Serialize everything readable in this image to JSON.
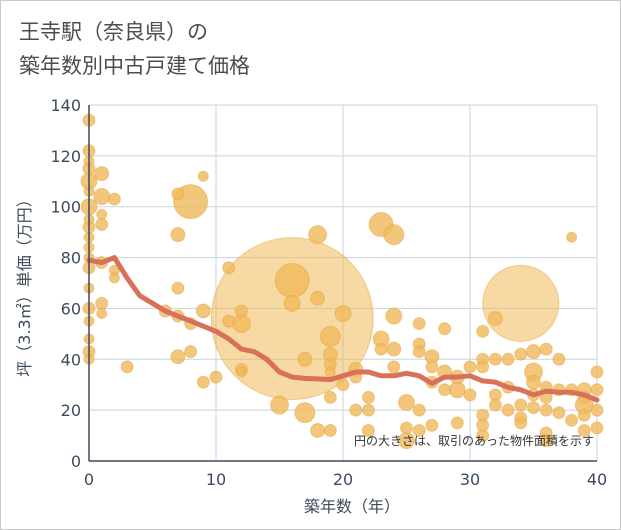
{
  "chart_data": {
    "type": "scatter",
    "title_line1": "王寺駅（奈良県）の",
    "title_line2": "築年数別中古戸建て価格",
    "xlabel": "築年数（年）",
    "ylabel": "坪（3.3㎡）単価（万円）",
    "xlim": [
      0,
      40
    ],
    "ylim": [
      0,
      140
    ],
    "x_ticks": [
      0,
      10,
      20,
      30,
      40
    ],
    "y_ticks": [
      0,
      20,
      40,
      60,
      80,
      100,
      120,
      140
    ],
    "grid": true,
    "note": "円の大きさは、取引のあった物件面積を示す",
    "colors": {
      "bubble_fill": "#f0b95a",
      "bubble_stroke": "#e8a440",
      "trend_line": "#d9705a",
      "grid": "#c8d3de",
      "axis": "#3d4b5c"
    },
    "trend_line": [
      [
        0,
        79
      ],
      [
        1,
        78
      ],
      [
        2,
        80
      ],
      [
        3,
        72
      ],
      [
        4,
        65
      ],
      [
        5,
        62
      ],
      [
        6,
        59
      ],
      [
        7,
        57
      ],
      [
        8,
        55
      ],
      [
        9,
        53
      ],
      [
        10,
        51
      ],
      [
        11,
        48
      ],
      [
        12,
        44
      ],
      [
        13,
        43
      ],
      [
        14,
        40
      ],
      [
        15,
        35
      ],
      [
        16,
        33
      ],
      [
        17,
        32.5
      ],
      [
        18,
        32.3
      ],
      [
        19,
        32
      ],
      [
        20,
        33.5
      ],
      [
        21,
        35
      ],
      [
        22,
        35
      ],
      [
        23,
        33.5
      ],
      [
        24,
        33.5
      ],
      [
        25,
        34.5
      ],
      [
        26,
        33.5
      ],
      [
        27,
        30.5
      ],
      [
        28,
        33
      ],
      [
        29,
        33
      ],
      [
        30,
        33.5
      ],
      [
        31,
        31.5
      ],
      [
        32,
        31
      ],
      [
        33,
        29
      ],
      [
        34,
        28
      ],
      [
        35,
        26
      ],
      [
        36,
        27.5
      ],
      [
        37,
        27
      ],
      [
        38,
        27
      ],
      [
        39,
        26
      ],
      [
        40,
        24
      ]
    ],
    "series": [
      {
        "points": [
          {
            "x": 16,
            "y": 56,
            "r": 81
          },
          {
            "x": 34,
            "y": 62,
            "r": 38
          },
          {
            "x": 16,
            "y": 71,
            "r": 17
          },
          {
            "x": 8,
            "y": 102,
            "r": 17
          },
          {
            "x": 23,
            "y": 93,
            "r": 12
          },
          {
            "x": 0,
            "y": 134,
            "r": 6
          },
          {
            "x": 0,
            "y": 122,
            "r": 6
          },
          {
            "x": 0,
            "y": 118,
            "r": 5
          },
          {
            "x": 0,
            "y": 115,
            "r": 6
          },
          {
            "x": 0,
            "y": 110,
            "r": 8
          },
          {
            "x": 0,
            "y": 106,
            "r": 5
          },
          {
            "x": 0,
            "y": 100,
            "r": 8
          },
          {
            "x": 0,
            "y": 95,
            "r": 5
          },
          {
            "x": 0,
            "y": 92,
            "r": 6
          },
          {
            "x": 0,
            "y": 88,
            "r": 5
          },
          {
            "x": 0,
            "y": 84,
            "r": 5
          },
          {
            "x": 0,
            "y": 80,
            "r": 5
          },
          {
            "x": 0,
            "y": 76,
            "r": 6
          },
          {
            "x": 0,
            "y": 68,
            "r": 5
          },
          {
            "x": 0,
            "y": 60,
            "r": 6
          },
          {
            "x": 0,
            "y": 55,
            "r": 5
          },
          {
            "x": 0,
            "y": 48,
            "r": 5
          },
          {
            "x": 0,
            "y": 43,
            "r": 6
          },
          {
            "x": 0,
            "y": 40,
            "r": 5
          },
          {
            "x": 1,
            "y": 113,
            "r": 7
          },
          {
            "x": 1,
            "y": 104,
            "r": 8
          },
          {
            "x": 1,
            "y": 97,
            "r": 5
          },
          {
            "x": 1,
            "y": 93,
            "r": 6
          },
          {
            "x": 1,
            "y": 78,
            "r": 6
          },
          {
            "x": 1,
            "y": 62,
            "r": 6
          },
          {
            "x": 1,
            "y": 58,
            "r": 5
          },
          {
            "x": 2,
            "y": 103,
            "r": 6
          },
          {
            "x": 2,
            "y": 75,
            "r": 5
          },
          {
            "x": 2,
            "y": 72,
            "r": 5
          },
          {
            "x": 3,
            "y": 37,
            "r": 6
          },
          {
            "x": 6,
            "y": 59,
            "r": 6
          },
          {
            "x": 7,
            "y": 105,
            "r": 6
          },
          {
            "x": 7,
            "y": 89,
            "r": 7
          },
          {
            "x": 7,
            "y": 68,
            "r": 6
          },
          {
            "x": 7,
            "y": 57,
            "r": 6
          },
          {
            "x": 7,
            "y": 41,
            "r": 7
          },
          {
            "x": 8,
            "y": 54,
            "r": 6
          },
          {
            "x": 8,
            "y": 43,
            "r": 6
          },
          {
            "x": 9,
            "y": 112,
            "r": 5
          },
          {
            "x": 9,
            "y": 59,
            "r": 7
          },
          {
            "x": 9,
            "y": 31,
            "r": 6
          },
          {
            "x": 10,
            "y": 33,
            "r": 6
          },
          {
            "x": 11,
            "y": 76,
            "r": 6
          },
          {
            "x": 11,
            "y": 55,
            "r": 6
          },
          {
            "x": 12,
            "y": 59,
            "r": 6
          },
          {
            "x": 12,
            "y": 54,
            "r": 9
          },
          {
            "x": 12,
            "y": 36,
            "r": 6
          },
          {
            "x": 12,
            "y": 35,
            "r": 5
          },
          {
            "x": 15,
            "y": 22,
            "r": 9
          },
          {
            "x": 16,
            "y": 62,
            "r": 8
          },
          {
            "x": 17,
            "y": 19,
            "r": 10
          },
          {
            "x": 17,
            "y": 40,
            "r": 7
          },
          {
            "x": 18,
            "y": 89,
            "r": 9
          },
          {
            "x": 18,
            "y": 64,
            "r": 7
          },
          {
            "x": 18,
            "y": 12,
            "r": 7
          },
          {
            "x": 19,
            "y": 49,
            "r": 10
          },
          {
            "x": 19,
            "y": 42,
            "r": 7
          },
          {
            "x": 19,
            "y": 38,
            "r": 6
          },
          {
            "x": 19,
            "y": 35,
            "r": 5
          },
          {
            "x": 19,
            "y": 25,
            "r": 6
          },
          {
            "x": 19,
            "y": 12,
            "r": 6
          },
          {
            "x": 20,
            "y": 58,
            "r": 8
          },
          {
            "x": 20,
            "y": 30,
            "r": 6
          },
          {
            "x": 21,
            "y": 36,
            "r": 7
          },
          {
            "x": 21,
            "y": 33,
            "r": 6
          },
          {
            "x": 21,
            "y": 20,
            "r": 6
          },
          {
            "x": 22,
            "y": 25,
            "r": 6
          },
          {
            "x": 22,
            "y": 20,
            "r": 6
          },
          {
            "x": 22,
            "y": 12,
            "r": 6
          },
          {
            "x": 23,
            "y": 48,
            "r": 8
          },
          {
            "x": 23,
            "y": 44,
            "r": 6
          },
          {
            "x": 24,
            "y": 89,
            "r": 10
          },
          {
            "x": 24,
            "y": 57,
            "r": 8
          },
          {
            "x": 24,
            "y": 44,
            "r": 7
          },
          {
            "x": 24,
            "y": 37,
            "r": 6
          },
          {
            "x": 25,
            "y": 23,
            "r": 8
          },
          {
            "x": 25,
            "y": 13,
            "r": 6
          },
          {
            "x": 25,
            "y": 8,
            "r": 8
          },
          {
            "x": 26,
            "y": 54,
            "r": 6
          },
          {
            "x": 26,
            "y": 46,
            "r": 6
          },
          {
            "x": 26,
            "y": 43,
            "r": 6
          },
          {
            "x": 26,
            "y": 20,
            "r": 6
          },
          {
            "x": 26,
            "y": 12,
            "r": 6
          },
          {
            "x": 27,
            "y": 41,
            "r": 7
          },
          {
            "x": 27,
            "y": 37,
            "r": 6
          },
          {
            "x": 27,
            "y": 31,
            "r": 6
          },
          {
            "x": 27,
            "y": 14,
            "r": 6
          },
          {
            "x": 28,
            "y": 52,
            "r": 6
          },
          {
            "x": 28,
            "y": 35,
            "r": 7
          },
          {
            "x": 28,
            "y": 28,
            "r": 6
          },
          {
            "x": 29,
            "y": 33,
            "r": 7
          },
          {
            "x": 29,
            "y": 28,
            "r": 8
          },
          {
            "x": 29,
            "y": 15,
            "r": 6
          },
          {
            "x": 30,
            "y": 37,
            "r": 6
          },
          {
            "x": 30,
            "y": 26,
            "r": 6
          },
          {
            "x": 31,
            "y": 51,
            "r": 6
          },
          {
            "x": 31,
            "y": 40,
            "r": 6
          },
          {
            "x": 31,
            "y": 37,
            "r": 6
          },
          {
            "x": 31,
            "y": 18,
            "r": 6
          },
          {
            "x": 31,
            "y": 14,
            "r": 6
          },
          {
            "x": 31,
            "y": 10,
            "r": 6
          },
          {
            "x": 32,
            "y": 56,
            "r": 7
          },
          {
            "x": 32,
            "y": 40,
            "r": 6
          },
          {
            "x": 32,
            "y": 26,
            "r": 6
          },
          {
            "x": 32,
            "y": 22,
            "r": 6
          },
          {
            "x": 33,
            "y": 40,
            "r": 6
          },
          {
            "x": 33,
            "y": 29,
            "r": 6
          },
          {
            "x": 33,
            "y": 20,
            "r": 6
          },
          {
            "x": 34,
            "y": 42,
            "r": 6
          },
          {
            "x": 34,
            "y": 22,
            "r": 6
          },
          {
            "x": 34,
            "y": 17,
            "r": 6
          },
          {
            "x": 34,
            "y": 15,
            "r": 6
          },
          {
            "x": 35,
            "y": 43,
            "r": 7
          },
          {
            "x": 35,
            "y": 35,
            "r": 9
          },
          {
            "x": 35,
            "y": 31,
            "r": 7
          },
          {
            "x": 35,
            "y": 26,
            "r": 6
          },
          {
            "x": 35,
            "y": 21,
            "r": 6
          },
          {
            "x": 36,
            "y": 44,
            "r": 6
          },
          {
            "x": 36,
            "y": 29,
            "r": 6
          },
          {
            "x": 36,
            "y": 25,
            "r": 6
          },
          {
            "x": 36,
            "y": 20,
            "r": 6
          },
          {
            "x": 36,
            "y": 11,
            "r": 6
          },
          {
            "x": 36,
            "y": 8,
            "r": 6
          },
          {
            "x": 37,
            "y": 40,
            "r": 6
          },
          {
            "x": 37,
            "y": 28,
            "r": 6
          },
          {
            "x": 37,
            "y": 19,
            "r": 6
          },
          {
            "x": 38,
            "y": 88,
            "r": 5
          },
          {
            "x": 38,
            "y": 28,
            "r": 6
          },
          {
            "x": 38,
            "y": 16,
            "r": 6
          },
          {
            "x": 39,
            "y": 28,
            "r": 7
          },
          {
            "x": 39,
            "y": 25,
            "r": 6
          },
          {
            "x": 39,
            "y": 22,
            "r": 9
          },
          {
            "x": 39,
            "y": 18,
            "r": 6
          },
          {
            "x": 39,
            "y": 12,
            "r": 6
          },
          {
            "x": 40,
            "y": 35,
            "r": 6
          },
          {
            "x": 40,
            "y": 28,
            "r": 6
          },
          {
            "x": 40,
            "y": 20,
            "r": 6
          },
          {
            "x": 40,
            "y": 13,
            "r": 6
          }
        ]
      }
    ]
  }
}
